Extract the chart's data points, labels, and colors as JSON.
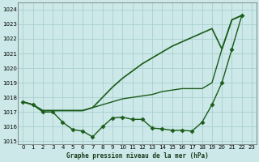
{
  "title": "Graphe pression niveau de la mer (hPa)",
  "background_color": "#cce8e8",
  "grid_color": "#aacfcf",
  "line_color": "#1a5c1a",
  "ylim": [
    1014.8,
    1024.5
  ],
  "xlim": [
    -0.5,
    23.5
  ],
  "yticks": [
    1015,
    1016,
    1017,
    1018,
    1019,
    1020,
    1021,
    1022,
    1023,
    1024
  ],
  "xticks": [
    0,
    1,
    2,
    3,
    4,
    5,
    6,
    7,
    8,
    9,
    10,
    11,
    12,
    13,
    14,
    15,
    16,
    17,
    18,
    19,
    20,
    21,
    22,
    23
  ],
  "series": [
    {
      "x": [
        0,
        1,
        2,
        3,
        4,
        5,
        6,
        7,
        8,
        9,
        10,
        11,
        12,
        13,
        14,
        15,
        16,
        17,
        18,
        19,
        20,
        21,
        22
      ],
      "y": [
        1017.7,
        1017.5,
        1017.1,
        1017.1,
        1017.1,
        1017.1,
        1017.1,
        1017.3,
        1018.0,
        1018.7,
        1019.3,
        1019.8,
        1020.3,
        1020.7,
        1021.1,
        1021.5,
        1021.8,
        1022.1,
        1022.4,
        1022.7,
        1021.3,
        1023.3,
        1023.6
      ],
      "marker": null,
      "markersize": 0,
      "linewidth": 1.2
    },
    {
      "x": [
        0,
        1,
        2,
        3,
        4,
        5,
        6,
        7,
        8,
        9,
        10,
        11,
        12,
        13,
        14,
        15,
        16,
        17,
        18,
        19,
        20,
        21,
        22
      ],
      "y": [
        1017.7,
        1017.5,
        1017.1,
        1017.1,
        1017.1,
        1017.1,
        1017.1,
        1017.3,
        1017.5,
        1017.7,
        1017.9,
        1018.0,
        1018.1,
        1018.2,
        1018.4,
        1018.5,
        1018.6,
        1018.6,
        1018.6,
        1019.0,
        1021.3,
        1023.3,
        1023.6
      ],
      "marker": null,
      "markersize": 0,
      "linewidth": 1.0
    },
    {
      "x": [
        0,
        1,
        2,
        3,
        4,
        5,
        6,
        7,
        8,
        9,
        10,
        11,
        12,
        13,
        14,
        15,
        16,
        17,
        18,
        19,
        20,
        21,
        22
      ],
      "y": [
        1017.7,
        1017.5,
        1017.0,
        1017.0,
        1016.3,
        1015.8,
        1015.7,
        1015.3,
        1016.0,
        1016.6,
        1016.65,
        1016.5,
        1016.5,
        1015.9,
        1015.85,
        1015.75,
        1015.75,
        1015.7,
        1016.3,
        1017.5,
        1019.0,
        1021.3,
        1023.6
      ],
      "marker": "D",
      "markersize": 2.5,
      "linewidth": 1.0
    }
  ]
}
